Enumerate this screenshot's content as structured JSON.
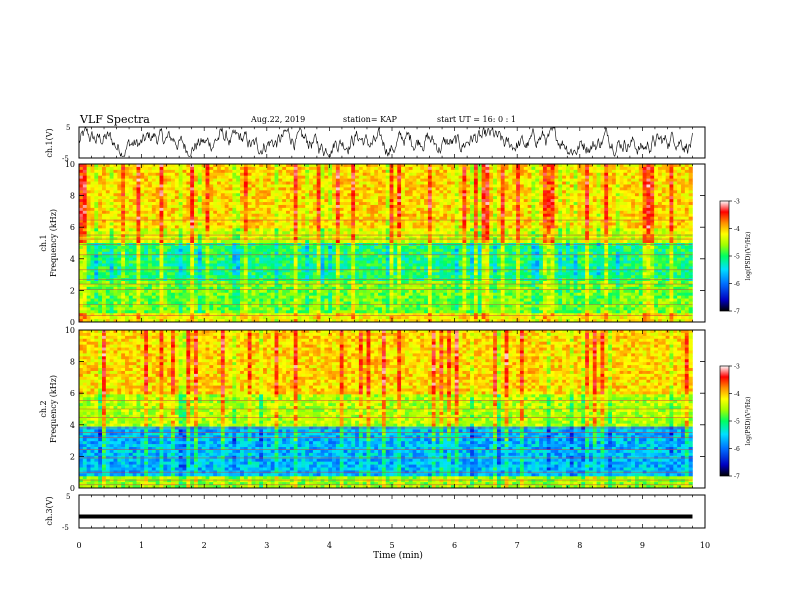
{
  "header": {
    "title": "VLF Spectra",
    "date": "Aug.22, 2019",
    "station": "station= KAP",
    "start": "start  UT =   16: 0  : 1"
  },
  "chart_data": [
    {
      "type": "line",
      "panel": "ch1-waveform",
      "ylabel": "ch.1(V)",
      "yticks": [
        "5",
        "-5"
      ],
      "ylim": [
        -5,
        5
      ],
      "xlim": [
        0,
        10
      ]
    },
    {
      "type": "heatmap",
      "panel": "ch1-spectrogram",
      "ylabel_top": "ch.1",
      "ylabel": "Frequency (kHz)",
      "yticks": [
        "0",
        "2",
        "4",
        "6",
        "8",
        "10"
      ],
      "ylim": [
        0,
        10
      ],
      "xlim": [
        0,
        9.8
      ],
      "colorbar": {
        "ticks": [
          "-3",
          "-4",
          "-5",
          "-6",
          "-7"
        ],
        "label": "log(PSD)(V²/Hz)",
        "range": [
          -7,
          -3
        ]
      }
    },
    {
      "type": "heatmap",
      "panel": "ch2-spectrogram",
      "ylabel_top": "ch.2",
      "ylabel": "Frequency (kHz)",
      "yticks": [
        "0",
        "2",
        "4",
        "6",
        "8",
        "10"
      ],
      "ylim": [
        0,
        10
      ],
      "xlim": [
        0,
        9.8
      ],
      "colorbar": {
        "ticks": [
          "-3",
          "-4",
          "-5",
          "-6",
          "-7"
        ],
        "label": "log(PSD)(V²/Hz)",
        "range": [
          -7,
          -3
        ]
      }
    },
    {
      "type": "line",
      "panel": "ch3-waveform",
      "ylabel": "ch.3(V)",
      "yticks": [
        "5",
        "-5"
      ],
      "ylim": [
        -5,
        5
      ],
      "value": -1.5,
      "xlabel": "Time (min)",
      "xticks": [
        "0",
        "1",
        "2",
        "3",
        "4",
        "5",
        "6",
        "7",
        "8",
        "9",
        "10"
      ],
      "xlim": [
        0,
        10
      ]
    }
  ],
  "colors": {
    "scale": [
      "#000000",
      "#0000d0",
      "#0070ff",
      "#00e0ff",
      "#00ff60",
      "#a0ff00",
      "#ffff00",
      "#ff9000",
      "#ff0000",
      "#ffffff"
    ],
    "axis": "#000000"
  }
}
